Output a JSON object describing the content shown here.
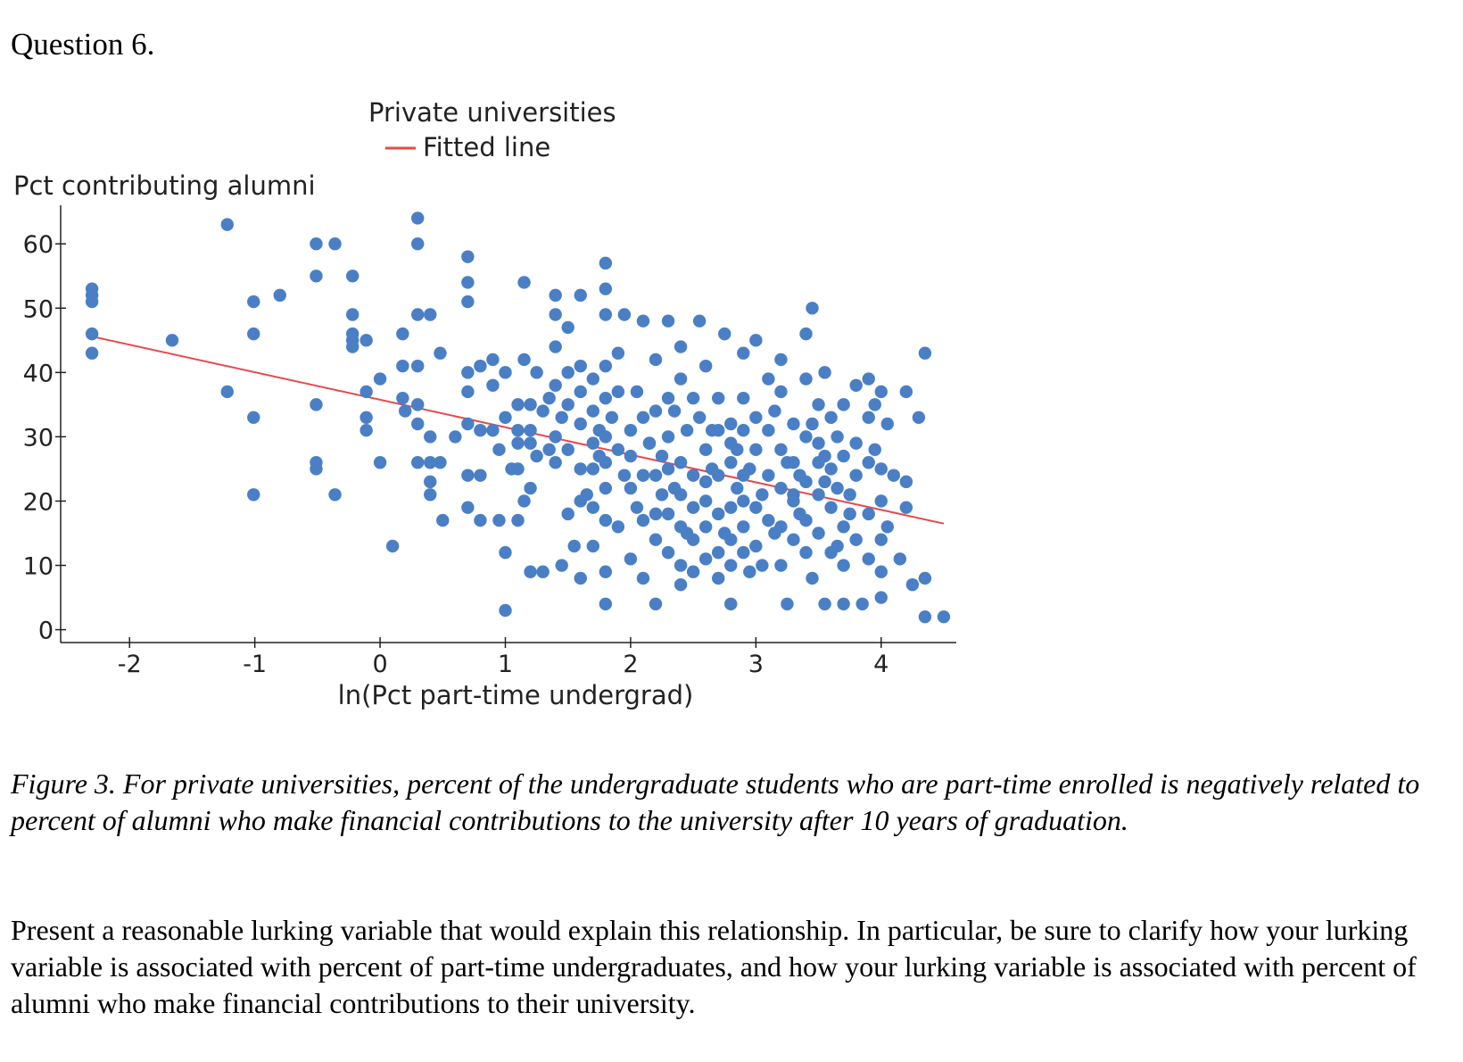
{
  "question": {
    "title": "Question 6."
  },
  "chart_data": {
    "type": "scatter",
    "title": "",
    "legend": [
      "Private universities",
      "Fitted line"
    ],
    "legend_position": "top-center",
    "ylabel": "Pct contributing alumni",
    "xlabel": "ln(Pct part-time undergrad)",
    "xlim": [
      -2.55,
      4.6
    ],
    "ylim": [
      -2,
      66
    ],
    "xticks": [
      -2,
      -1,
      0,
      1,
      2,
      3,
      4
    ],
    "yticks": [
      0,
      10,
      20,
      30,
      40,
      50,
      60
    ],
    "colors": {
      "points": "#4a7fc6",
      "fit_line": "#e8484d"
    },
    "fitted_line": {
      "x": [
        -2.3,
        4.5
      ],
      "y": [
        45.6,
        16.5
      ]
    },
    "points": [
      [
        -2.3,
        53
      ],
      [
        -2.3,
        52
      ],
      [
        -2.3,
        51
      ],
      [
        -2.3,
        46
      ],
      [
        -2.3,
        43
      ],
      [
        -1.66,
        45
      ],
      [
        -1.22,
        63
      ],
      [
        -1.22,
        37
      ],
      [
        -1.01,
        51
      ],
      [
        -1.01,
        46
      ],
      [
        -1.01,
        33
      ],
      [
        -1.01,
        21
      ],
      [
        -0.8,
        52
      ],
      [
        -0.51,
        60
      ],
      [
        -0.51,
        55
      ],
      [
        -0.51,
        35
      ],
      [
        -0.51,
        26
      ],
      [
        -0.51,
        25
      ],
      [
        -0.36,
        60
      ],
      [
        -0.36,
        21
      ],
      [
        -0.22,
        55
      ],
      [
        -0.22,
        49
      ],
      [
        -0.22,
        46
      ],
      [
        -0.22,
        45
      ],
      [
        -0.22,
        44
      ],
      [
        -0.11,
        45
      ],
      [
        -0.11,
        37
      ],
      [
        -0.11,
        33
      ],
      [
        -0.11,
        31
      ],
      [
        0,
        39
      ],
      [
        0,
        26
      ],
      [
        0.1,
        13
      ],
      [
        0.18,
        46
      ],
      [
        0.18,
        41
      ],
      [
        0.18,
        36
      ],
      [
        0.2,
        34
      ],
      [
        0.3,
        64
      ],
      [
        0.3,
        60
      ],
      [
        0.3,
        49
      ],
      [
        0.3,
        41
      ],
      [
        0.3,
        35
      ],
      [
        0.3,
        32
      ],
      [
        0.3,
        26
      ],
      [
        0.4,
        49
      ],
      [
        0.4,
        30
      ],
      [
        0.4,
        26
      ],
      [
        0.4,
        23
      ],
      [
        0.4,
        21
      ],
      [
        0.48,
        43
      ],
      [
        0.48,
        26
      ],
      [
        0.5,
        17
      ],
      [
        0.6,
        30
      ],
      [
        0.7,
        58
      ],
      [
        0.7,
        54
      ],
      [
        0.7,
        51
      ],
      [
        0.7,
        40
      ],
      [
        0.7,
        37
      ],
      [
        0.7,
        32
      ],
      [
        0.7,
        24
      ],
      [
        0.7,
        19
      ],
      [
        0.8,
        41
      ],
      [
        0.8,
        31
      ],
      [
        0.8,
        24
      ],
      [
        0.8,
        17
      ],
      [
        0.9,
        42
      ],
      [
        0.9,
        38
      ],
      [
        0.9,
        31
      ],
      [
        0.95,
        17
      ],
      [
        1.0,
        40
      ],
      [
        1.0,
        33
      ],
      [
        1.0,
        12
      ],
      [
        1.0,
        3
      ],
      [
        1.1,
        35
      ],
      [
        1.1,
        31
      ],
      [
        1.1,
        29
      ],
      [
        1.1,
        25
      ],
      [
        1.1,
        17
      ],
      [
        1.15,
        54
      ],
      [
        1.15,
        42
      ],
      [
        1.2,
        35
      ],
      [
        1.2,
        31
      ],
      [
        1.2,
        29
      ],
      [
        1.2,
        22
      ],
      [
        1.2,
        9
      ],
      [
        1.25,
        40
      ],
      [
        1.3,
        9
      ],
      [
        1.3,
        34
      ],
      [
        1.35,
        28
      ],
      [
        1.4,
        52
      ],
      [
        1.4,
        49
      ],
      [
        1.4,
        44
      ],
      [
        1.4,
        38
      ],
      [
        1.4,
        30
      ],
      [
        1.4,
        26
      ],
      [
        1.45,
        33
      ],
      [
        1.45,
        10
      ],
      [
        1.5,
        47
      ],
      [
        1.5,
        40
      ],
      [
        1.5,
        35
      ],
      [
        1.5,
        28
      ],
      [
        1.5,
        18
      ],
      [
        1.55,
        13
      ],
      [
        1.6,
        52
      ],
      [
        1.6,
        41
      ],
      [
        1.6,
        37
      ],
      [
        1.6,
        32
      ],
      [
        1.6,
        25
      ],
      [
        1.6,
        20
      ],
      [
        1.6,
        8
      ],
      [
        1.7,
        39
      ],
      [
        1.7,
        34
      ],
      [
        1.7,
        29
      ],
      [
        1.7,
        25
      ],
      [
        1.7,
        19
      ],
      [
        1.7,
        13
      ],
      [
        1.75,
        31
      ],
      [
        1.8,
        57
      ],
      [
        1.8,
        53
      ],
      [
        1.8,
        49
      ],
      [
        1.8,
        41
      ],
      [
        1.8,
        36
      ],
      [
        1.8,
        30
      ],
      [
        1.8,
        26
      ],
      [
        1.8,
        22
      ],
      [
        1.8,
        17
      ],
      [
        1.8,
        9
      ],
      [
        1.8,
        4
      ],
      [
        1.85,
        33
      ],
      [
        1.9,
        43
      ],
      [
        1.9,
        37
      ],
      [
        1.9,
        28
      ],
      [
        1.9,
        16
      ],
      [
        1.95,
        49
      ],
      [
        2.0,
        31
      ],
      [
        2.0,
        27
      ],
      [
        2.0,
        22
      ],
      [
        2.0,
        11
      ],
      [
        2.05,
        37
      ],
      [
        2.1,
        48
      ],
      [
        2.1,
        33
      ],
      [
        2.1,
        24
      ],
      [
        2.1,
        17
      ],
      [
        2.1,
        8
      ],
      [
        2.15,
        29
      ],
      [
        2.2,
        42
      ],
      [
        2.2,
        34
      ],
      [
        2.2,
        24
      ],
      [
        2.2,
        18
      ],
      [
        2.2,
        14
      ],
      [
        2.2,
        4
      ],
      [
        2.25,
        21
      ],
      [
        2.3,
        48
      ],
      [
        2.3,
        36
      ],
      [
        2.3,
        30
      ],
      [
        2.3,
        25
      ],
      [
        2.3,
        18
      ],
      [
        2.3,
        12
      ],
      [
        2.35,
        34
      ],
      [
        2.4,
        44
      ],
      [
        2.4,
        39
      ],
      [
        2.4,
        26
      ],
      [
        2.4,
        21
      ],
      [
        2.4,
        16
      ],
      [
        2.4,
        10
      ],
      [
        2.4,
        7
      ],
      [
        2.45,
        31
      ],
      [
        2.5,
        36
      ],
      [
        2.5,
        24
      ],
      [
        2.5,
        19
      ],
      [
        2.5,
        14
      ],
      [
        2.5,
        9
      ],
      [
        2.55,
        48
      ],
      [
        2.55,
        33
      ],
      [
        2.6,
        41
      ],
      [
        2.6,
        28
      ],
      [
        2.6,
        20
      ],
      [
        2.6,
        16
      ],
      [
        2.6,
        11
      ],
      [
        2.65,
        25
      ],
      [
        2.7,
        36
      ],
      [
        2.7,
        31
      ],
      [
        2.7,
        24
      ],
      [
        2.7,
        18
      ],
      [
        2.7,
        12
      ],
      [
        2.7,
        8
      ],
      [
        2.75,
        46
      ],
      [
        2.8,
        32
      ],
      [
        2.8,
        29
      ],
      [
        2.8,
        26
      ],
      [
        2.8,
        19
      ],
      [
        2.8,
        14
      ],
      [
        2.8,
        10
      ],
      [
        2.8,
        4
      ],
      [
        2.85,
        22
      ],
      [
        2.9,
        43
      ],
      [
        2.9,
        36
      ],
      [
        2.9,
        31
      ],
      [
        2.9,
        24
      ],
      [
        2.9,
        16
      ],
      [
        2.9,
        12
      ],
      [
        2.95,
        9
      ],
      [
        3.0,
        45
      ],
      [
        3.0,
        33
      ],
      [
        3.0,
        28
      ],
      [
        3.0,
        19
      ],
      [
        3.0,
        13
      ],
      [
        3.05,
        10
      ],
      [
        3.1,
        39
      ],
      [
        3.1,
        31
      ],
      [
        3.1,
        24
      ],
      [
        3.1,
        17
      ],
      [
        3.15,
        34
      ],
      [
        3.2,
        42
      ],
      [
        3.2,
        37
      ],
      [
        3.2,
        28
      ],
      [
        3.2,
        22
      ],
      [
        3.2,
        16
      ],
      [
        3.2,
        10
      ],
      [
        3.25,
        4
      ],
      [
        3.3,
        32
      ],
      [
        3.3,
        26
      ],
      [
        3.3,
        21
      ],
      [
        3.3,
        14
      ],
      [
        3.35,
        24
      ],
      [
        3.4,
        46
      ],
      [
        3.4,
        39
      ],
      [
        3.4,
        30
      ],
      [
        3.4,
        23
      ],
      [
        3.4,
        17
      ],
      [
        3.4,
        12
      ],
      [
        3.45,
        50
      ],
      [
        3.45,
        8
      ],
      [
        3.5,
        35
      ],
      [
        3.5,
        29
      ],
      [
        3.5,
        21
      ],
      [
        3.5,
        15
      ],
      [
        3.55,
        40
      ],
      [
        3.55,
        27
      ],
      [
        3.55,
        4
      ],
      [
        3.6,
        33
      ],
      [
        3.6,
        25
      ],
      [
        3.6,
        19
      ],
      [
        3.6,
        12
      ],
      [
        3.65,
        30
      ],
      [
        3.65,
        22
      ],
      [
        3.7,
        35
      ],
      [
        3.7,
        27
      ],
      [
        3.7,
        16
      ],
      [
        3.7,
        10
      ],
      [
        3.7,
        4
      ],
      [
        3.75,
        21
      ],
      [
        3.8,
        38
      ],
      [
        3.8,
        29
      ],
      [
        3.8,
        24
      ],
      [
        3.8,
        14
      ],
      [
        3.85,
        4
      ],
      [
        3.9,
        39
      ],
      [
        3.9,
        33
      ],
      [
        3.9,
        26
      ],
      [
        3.9,
        18
      ],
      [
        3.9,
        11
      ],
      [
        3.95,
        35
      ],
      [
        4.0,
        37
      ],
      [
        4.0,
        25
      ],
      [
        4.0,
        20
      ],
      [
        4.0,
        14
      ],
      [
        4.0,
        9
      ],
      [
        4.0,
        5
      ],
      [
        4.05,
        32
      ],
      [
        4.05,
        16
      ],
      [
        4.1,
        24
      ],
      [
        4.15,
        11
      ],
      [
        4.2,
        37
      ],
      [
        4.2,
        23
      ],
      [
        4.2,
        19
      ],
      [
        4.25,
        7
      ],
      [
        4.3,
        33
      ],
      [
        4.35,
        43
      ],
      [
        4.35,
        8
      ],
      [
        4.35,
        2
      ],
      [
        4.5,
        2
      ],
      [
        2.15,
        29
      ],
      [
        2.6,
        23
      ],
      [
        3.3,
        20
      ],
      [
        3.5,
        26
      ],
      [
        2.9,
        20
      ],
      [
        1.95,
        24
      ],
      [
        2.45,
        15
      ],
      [
        3.15,
        15
      ],
      [
        3.75,
        18
      ],
      [
        1.65,
        21
      ],
      [
        2.25,
        27
      ],
      [
        3.35,
        18
      ],
      [
        2.75,
        15
      ],
      [
        3.95,
        28
      ],
      [
        2.05,
        19
      ],
      [
        3.45,
        32
      ],
      [
        1.35,
        36
      ],
      [
        1.25,
        27
      ],
      [
        2.85,
        28
      ],
      [
        3.65,
        13
      ],
      [
        0.95,
        28
      ],
      [
        1.05,
        25
      ],
      [
        1.15,
        20
      ],
      [
        2.35,
        22
      ],
      [
        3.05,
        21
      ],
      [
        3.25,
        26
      ],
      [
        3.55,
        23
      ],
      [
        2.65,
        31
      ],
      [
        2.95,
        25
      ],
      [
        1.75,
        27
      ]
    ]
  }
}
